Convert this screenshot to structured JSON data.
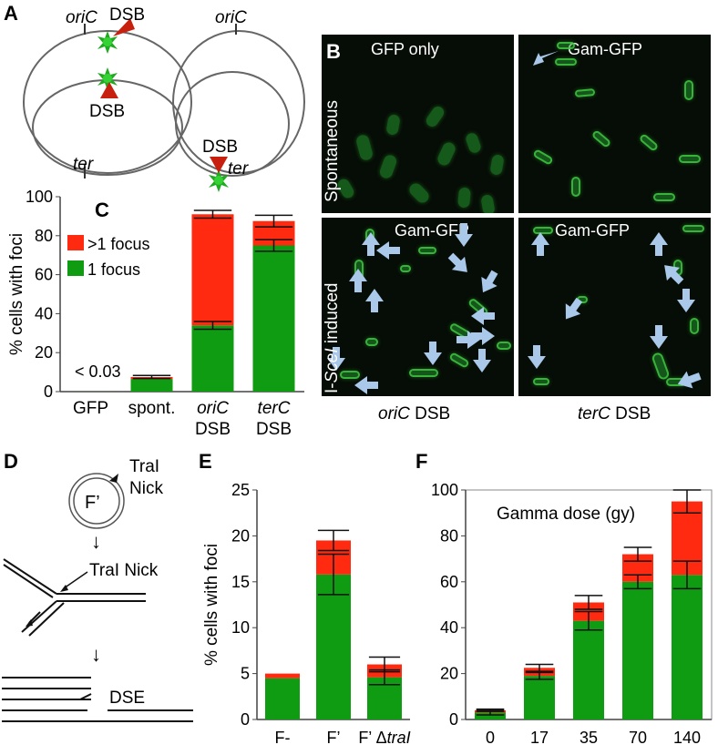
{
  "panels": {
    "A": "A",
    "B": "B",
    "C": "C",
    "D": "D",
    "E": "E",
    "F": "F"
  },
  "panelA": {
    "left": {
      "origin": "oriC",
      "dsb_top": "DSB",
      "dsb_inner": "DSB",
      "terminus": "ter"
    },
    "right": {
      "origin": "oriC",
      "dsb": "DSB",
      "terminus": "ter"
    }
  },
  "panelB": {
    "top_left": "GFP only",
    "top_right": "Gam-GFP",
    "bottom_left": "Gam-GFP",
    "bottom_right": "Gam-GFP",
    "row_top": "Spontaneous",
    "row_bottom_prefix": "I-",
    "row_bottom_ital": "SceI",
    "row_bottom_suffix": " induced",
    "col_left_ital": "oriC",
    "col_left_suffix": " DSB",
    "col_right_ital": "terC",
    "col_right_suffix": " DSB"
  },
  "panelD": {
    "plasmid": "F’",
    "tra_top_1": "TraI",
    "tra_top_2": "Nick",
    "tra_mid": "TraI Nick",
    "dse": "DSE"
  },
  "colors": {
    "red": "#ff2a10",
    "green": "#0f9b12",
    "arrow": "#a9c8ea",
    "cell": "#1e7a24"
  },
  "chart_data": [
    {
      "panel": "C",
      "type": "bar",
      "ylabel": "% cells with foci",
      "ylim": [
        0,
        100
      ],
      "yticks": [
        "0",
        "20",
        "40",
        "60",
        "80",
        "100"
      ],
      "categories": [
        "GFP",
        "spont.",
        "oriC DSB",
        "terC DSB"
      ],
      "category_lines": [
        [
          "GFP"
        ],
        [
          "spont."
        ],
        [
          "oriC",
          "DSB"
        ],
        [
          "terC",
          "DSB"
        ]
      ],
      "italic_first_line": [
        false,
        false,
        true,
        true
      ],
      "series": [
        {
          "name": "1 focus",
          "values": [
            0.03,
            6.5,
            34,
            75
          ]
        },
        {
          "name": ">1 focus",
          "values": [
            0,
            1.0,
            57,
            12.5
          ]
        }
      ],
      "annotation": "< 0.03",
      "legend": "top-left"
    },
    {
      "panel": "E",
      "type": "bar",
      "ylabel": "% cells with foci",
      "ylim": [
        0,
        25
      ],
      "yticks": [
        "0",
        "5",
        "10",
        "15",
        "20",
        "25"
      ],
      "categories": [
        "F-",
        "F’",
        "F’ ΔtraI"
      ],
      "series": [
        {
          "values": [
            4.5,
            15.8,
            4.6
          ]
        },
        {
          "values": [
            0.5,
            3.7,
            1.4
          ]
        }
      ]
    },
    {
      "panel": "F",
      "type": "bar",
      "title": "Gamma dose (gy)",
      "ylim": [
        0,
        100
      ],
      "yticks": [
        "0",
        "20",
        "40",
        "60",
        "80",
        "100"
      ],
      "categories": [
        "0",
        "17",
        "35",
        "70",
        "140"
      ],
      "series": [
        {
          "values": [
            3,
            19,
            43,
            60,
            63
          ]
        },
        {
          "values": [
            1,
            3.5,
            8,
            12,
            32
          ]
        }
      ]
    }
  ]
}
